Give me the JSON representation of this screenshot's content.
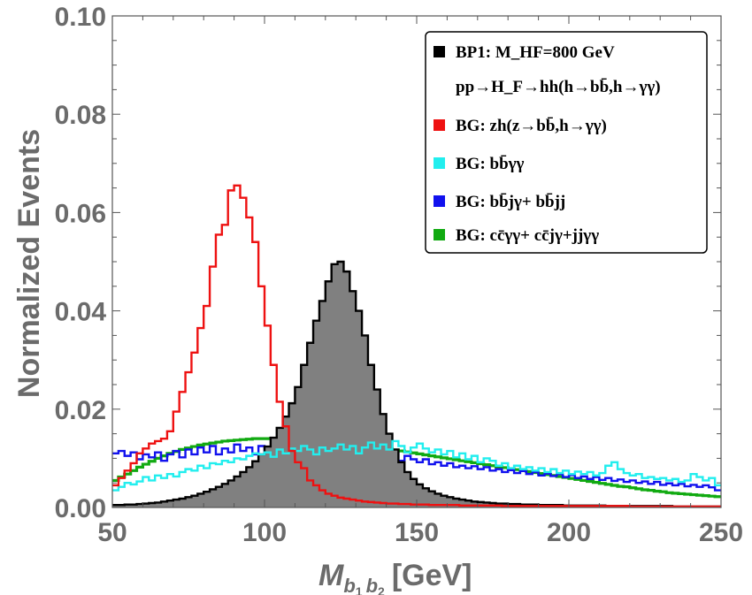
{
  "chart_data": {
    "type": "histogram",
    "xlabel": "M",
    "xlabel_sub1": "b",
    "xlabel_sub1_idx": "1",
    "xlabel_sub2": "b",
    "xlabel_sub2_idx": "2",
    "xlabel_unit": "[GeV]",
    "ylabel": "Normalized Events",
    "xlim": [
      50,
      250
    ],
    "ylim": [
      0,
      0.1
    ],
    "x_ticks": [
      50,
      100,
      150,
      200,
      250
    ],
    "y_ticks": [
      0.0,
      0.02,
      0.04,
      0.06,
      0.08,
      0.1
    ],
    "y_tick_labels": [
      "0.00",
      "0.02",
      "0.04",
      "0.06",
      "0.08",
      "0.10"
    ],
    "x_tick_labels": [
      "50",
      "100",
      "150",
      "200",
      "250"
    ],
    "bin_width": 2,
    "legend_position": "top-right",
    "legend": [
      {
        "color": "#000000",
        "label": "BP1: M_HF=800 GeV"
      },
      {
        "color": "",
        "label": "pp→H_F→hh(h→bb̄,h→γγ)"
      },
      {
        "color": "#ee1111",
        "label": "BG: zh(z→bb̄,h→γγ)"
      },
      {
        "color": "#22eeee",
        "label": "BG: bb̄γγ"
      },
      {
        "color": "#1111ee",
        "label": "BG: bb̄jγ+ bb̄jj"
      },
      {
        "color": "#11aa11",
        "label": "BG:  cc̄γγ+ cc̄jγ+jjγγ"
      }
    ],
    "series": [
      {
        "name": "BP1",
        "color": "#000000",
        "fill": "#808080",
        "x": [
          50,
          52,
          54,
          56,
          58,
          60,
          62,
          64,
          66,
          68,
          70,
          72,
          74,
          76,
          78,
          80,
          82,
          84,
          86,
          88,
          90,
          92,
          94,
          96,
          98,
          100,
          102,
          104,
          106,
          108,
          110,
          112,
          114,
          116,
          118,
          120,
          122,
          124,
          126,
          128,
          130,
          132,
          134,
          136,
          138,
          140,
          142,
          144,
          146,
          148,
          150,
          152,
          154,
          156,
          158,
          160,
          162,
          164,
          166,
          168,
          170,
          172,
          174,
          176,
          178,
          180,
          182,
          184,
          186,
          188,
          190,
          192,
          194,
          196,
          198,
          200,
          202,
          204,
          206,
          208,
          210,
          212,
          214,
          216,
          218,
          220,
          222,
          224,
          226,
          228,
          230,
          232,
          234,
          236,
          238,
          240,
          242,
          244,
          246,
          248
        ],
        "values": [
          0.0005,
          0.0005,
          0.0006,
          0.0006,
          0.0007,
          0.0008,
          0.0009,
          0.001,
          0.0012,
          0.0014,
          0.0016,
          0.0018,
          0.0021,
          0.0024,
          0.0028,
          0.0032,
          0.0037,
          0.0042,
          0.0048,
          0.0055,
          0.0063,
          0.0072,
          0.0082,
          0.0094,
          0.0108,
          0.0124,
          0.0142,
          0.0162,
          0.0185,
          0.0212,
          0.0245,
          0.029,
          0.0335,
          0.038,
          0.042,
          0.046,
          0.0495,
          0.05,
          0.048,
          0.044,
          0.04,
          0.035,
          0.029,
          0.024,
          0.019,
          0.015,
          0.0118,
          0.0092,
          0.0072,
          0.0058,
          0.0047,
          0.0039,
          0.0033,
          0.0028,
          0.0024,
          0.0021,
          0.0018,
          0.0016,
          0.0014,
          0.0012,
          0.0011,
          0.001,
          0.0009,
          0.0008,
          0.0008,
          0.0007,
          0.0007,
          0.0006,
          0.0006,
          0.0006,
          0.0005,
          0.0005,
          0.0005,
          0.0005,
          0.0004,
          0.0004,
          0.0004,
          0.0004,
          0.0004,
          0.0004,
          0.0004,
          0.0003,
          0.0003,
          0.0003,
          0.0003,
          0.0003,
          0.0003,
          0.0003,
          0.0003,
          0.0003,
          0.0003,
          0.0003,
          0.0002,
          0.0002,
          0.0002,
          0.0002,
          0.0002,
          0.0002,
          0.0002,
          0.0002
        ]
      },
      {
        "name": "BG: zh",
        "color": "#ee1111",
        "x": [
          50,
          52,
          54,
          56,
          58,
          60,
          62,
          64,
          66,
          68,
          70,
          72,
          74,
          76,
          78,
          80,
          82,
          84,
          86,
          88,
          90,
          92,
          94,
          96,
          98,
          100,
          102,
          104,
          106,
          108,
          110,
          112,
          114,
          116,
          118,
          120,
          122,
          124,
          126,
          128,
          130,
          132,
          134,
          136,
          138,
          140,
          142,
          144,
          146,
          148,
          150,
          152,
          154,
          156,
          158,
          160,
          162,
          164,
          166,
          168,
          170,
          172,
          174,
          176,
          178,
          180,
          182,
          184,
          186,
          188,
          190,
          192,
          194,
          196,
          198,
          200,
          202,
          204,
          206,
          208,
          210,
          212,
          214,
          216,
          218,
          220,
          222,
          224,
          226,
          228,
          230,
          232,
          234,
          236,
          238,
          240,
          242,
          244,
          246,
          248
        ],
        "values": [
          0.0045,
          0.006,
          0.0075,
          0.009,
          0.011,
          0.012,
          0.013,
          0.0135,
          0.014,
          0.0155,
          0.0195,
          0.0235,
          0.0275,
          0.0315,
          0.0365,
          0.041,
          0.049,
          0.0555,
          0.0575,
          0.0645,
          0.0655,
          0.063,
          0.059,
          0.054,
          0.045,
          0.037,
          0.029,
          0.0215,
          0.0165,
          0.0115,
          0.0092,
          0.008,
          0.0055,
          0.0045,
          0.0035,
          0.0028,
          0.0024,
          0.002,
          0.0018,
          0.0016,
          0.0014,
          0.0012,
          0.0011,
          0.001,
          0.0009,
          0.0008,
          0.0008,
          0.0007,
          0.0007,
          0.0006,
          0.0006,
          0.0006,
          0.0005,
          0.0005,
          0.0005,
          0.0005,
          0.0005,
          0.0004,
          0.0004,
          0.0004,
          0.0004,
          0.0004,
          0.0004,
          0.0004,
          0.0003,
          0.0003,
          0.0003,
          0.0003,
          0.0003,
          0.0003,
          0.0003,
          0.0003,
          0.0003,
          0.0003,
          0.0003,
          0.0003,
          0.0003,
          0.0003,
          0.0003,
          0.0003,
          0.0003,
          0.0003,
          0.0003,
          0.0003,
          0.0003,
          0.0002,
          0.0002,
          0.0002,
          0.0002,
          0.0002,
          0.0002,
          0.0002,
          0.0002,
          0.0002,
          0.0002,
          0.0002,
          0.0002,
          0.0002,
          0.0002,
          0.0002
        ]
      },
      {
        "name": "BG: bbγγ",
        "color": "#22eeee",
        "x": [
          50,
          52,
          54,
          56,
          58,
          60,
          62,
          64,
          66,
          68,
          70,
          72,
          74,
          76,
          78,
          80,
          82,
          84,
          86,
          88,
          90,
          92,
          94,
          96,
          98,
          100,
          102,
          104,
          106,
          108,
          110,
          112,
          114,
          116,
          118,
          120,
          122,
          124,
          126,
          128,
          130,
          132,
          134,
          136,
          138,
          140,
          142,
          144,
          146,
          148,
          150,
          152,
          154,
          156,
          158,
          160,
          162,
          164,
          166,
          168,
          170,
          172,
          174,
          176,
          178,
          180,
          182,
          184,
          186,
          188,
          190,
          192,
          194,
          196,
          198,
          200,
          202,
          204,
          206,
          208,
          210,
          212,
          214,
          216,
          218,
          220,
          222,
          224,
          226,
          228,
          230,
          232,
          234,
          236,
          238,
          240,
          242,
          244,
          246,
          248
        ],
        "values": [
          0.0035,
          0.0042,
          0.005,
          0.0047,
          0.0053,
          0.0062,
          0.0055,
          0.0065,
          0.006,
          0.0068,
          0.0063,
          0.0072,
          0.0078,
          0.0075,
          0.0085,
          0.008,
          0.009,
          0.0088,
          0.0095,
          0.0092,
          0.01,
          0.0098,
          0.0105,
          0.011,
          0.0108,
          0.0112,
          0.0103,
          0.0118,
          0.011,
          0.012,
          0.0115,
          0.0125,
          0.0118,
          0.0108,
          0.0122,
          0.0115,
          0.012,
          0.0128,
          0.0118,
          0.0125,
          0.011,
          0.0122,
          0.0132,
          0.012,
          0.0128,
          0.0118,
          0.0135,
          0.0125,
          0.0112,
          0.0122,
          0.013,
          0.012,
          0.0112,
          0.0118,
          0.0108,
          0.0115,
          0.0102,
          0.011,
          0.0098,
          0.0105,
          0.0092,
          0.01,
          0.0095,
          0.0085,
          0.009,
          0.008,
          0.0085,
          0.0078,
          0.0082,
          0.0075,
          0.008,
          0.0072,
          0.0078,
          0.007,
          0.0075,
          0.0068,
          0.0073,
          0.0068,
          0.0072,
          0.0065,
          0.007,
          0.0085,
          0.0092,
          0.0078,
          0.007,
          0.0065,
          0.0068,
          0.006,
          0.0062,
          0.0058,
          0.006,
          0.0055,
          0.0058,
          0.0052,
          0.0055,
          0.0068,
          0.0062,
          0.0055,
          0.006,
          0.0045
        ]
      },
      {
        "name": "BG: bbjγ + bbjj",
        "color": "#1111ee",
        "x": [
          50,
          52,
          54,
          56,
          58,
          60,
          62,
          64,
          66,
          68,
          70,
          72,
          74,
          76,
          78,
          80,
          82,
          84,
          86,
          88,
          90,
          92,
          94,
          96,
          98,
          100,
          102,
          104,
          106,
          108,
          110,
          112,
          114,
          116,
          118,
          120,
          122,
          124,
          126,
          128,
          130,
          132,
          134,
          136,
          138,
          140,
          142,
          144,
          146,
          148,
          150,
          152,
          154,
          156,
          158,
          160,
          162,
          164,
          166,
          168,
          170,
          172,
          174,
          176,
          178,
          180,
          182,
          184,
          186,
          188,
          190,
          192,
          194,
          196,
          198,
          200,
          202,
          204,
          206,
          208,
          210,
          212,
          214,
          216,
          218,
          220,
          222,
          224,
          226,
          228,
          230,
          232,
          234,
          236,
          238,
          240,
          242,
          244,
          246,
          248
        ],
        "values": [
          0.011,
          0.0115,
          0.0105,
          0.0112,
          0.0098,
          0.0108,
          0.0102,
          0.0112,
          0.0095,
          0.0108,
          0.0115,
          0.0102,
          0.0118,
          0.0108,
          0.0122,
          0.0112,
          0.0125,
          0.0108,
          0.012,
          0.0112,
          0.0128,
          0.0115,
          0.0122,
          0.0108,
          0.0125,
          0.0115,
          0.0108,
          0.012,
          0.0112,
          0.0128,
          0.0118,
          0.0108,
          0.0125,
          0.0115,
          0.012,
          0.0108,
          0.0118,
          0.011,
          0.0122,
          0.0108,
          0.0115,
          0.0102,
          0.0112,
          0.0098,
          0.0108,
          0.0102,
          0.0112,
          0.0095,
          0.0105,
          0.0098,
          0.0092,
          0.0098,
          0.0088,
          0.0092,
          0.0085,
          0.009,
          0.0082,
          0.0085,
          0.008,
          0.0084,
          0.0078,
          0.0082,
          0.0075,
          0.0078,
          0.0072,
          0.0076,
          0.007,
          0.0074,
          0.0068,
          0.0072,
          0.0065,
          0.0069,
          0.0064,
          0.0068,
          0.0062,
          0.0066,
          0.006,
          0.0063,
          0.0058,
          0.0062,
          0.0056,
          0.006,
          0.0054,
          0.0057,
          0.0052,
          0.0055,
          0.005,
          0.0053,
          0.0048,
          0.0052,
          0.0046,
          0.0049,
          0.0045,
          0.0048,
          0.0043,
          0.0046,
          0.0042,
          0.0045,
          0.0041,
          0.0035
        ]
      },
      {
        "name": "BG: ccγγ + ccjγ + jjγγ",
        "color": "#11aa11",
        "x": [
          50,
          52,
          54,
          56,
          58,
          60,
          62,
          64,
          66,
          68,
          70,
          72,
          74,
          76,
          78,
          80,
          82,
          84,
          86,
          88,
          90,
          92,
          94,
          96,
          98,
          100,
          102,
          104,
          106,
          108,
          110,
          112,
          114,
          116,
          118,
          120,
          122,
          124,
          126,
          128,
          130,
          132,
          134,
          136,
          138,
          140,
          142,
          144,
          146,
          148,
          150,
          152,
          154,
          156,
          158,
          160,
          162,
          164,
          166,
          168,
          170,
          172,
          174,
          176,
          178,
          180,
          182,
          184,
          186,
          188,
          190,
          192,
          194,
          196,
          198,
          200,
          202,
          204,
          206,
          208,
          210,
          212,
          214,
          216,
          218,
          220,
          222,
          224,
          226,
          228,
          230,
          232,
          234,
          236,
          238,
          240,
          242,
          244,
          246,
          248
        ],
        "values": [
          0.0055,
          0.0062,
          0.0068,
          0.0075,
          0.0082,
          0.0088,
          0.0094,
          0.01,
          0.0105,
          0.011,
          0.0114,
          0.0118,
          0.0121,
          0.0124,
          0.0127,
          0.0129,
          0.0131,
          0.0133,
          0.0135,
          0.0136,
          0.0137,
          0.0138,
          0.0139,
          0.014,
          0.014,
          0.014,
          0.0141,
          0.0141,
          0.0141,
          0.014,
          0.014,
          0.014,
          0.0139,
          0.0138,
          0.0137,
          0.0136,
          0.0135,
          0.0134,
          0.0132,
          0.013,
          0.0129,
          0.0127,
          0.0125,
          0.0123,
          0.0121,
          0.0119,
          0.0117,
          0.0115,
          0.0113,
          0.0111,
          0.0109,
          0.0107,
          0.0105,
          0.0103,
          0.0101,
          0.0099,
          0.0097,
          0.0095,
          0.0093,
          0.0091,
          0.0089,
          0.0087,
          0.0085,
          0.0083,
          0.0081,
          0.0079,
          0.0077,
          0.0075,
          0.0073,
          0.0071,
          0.0069,
          0.0067,
          0.0065,
          0.0063,
          0.0061,
          0.0059,
          0.0057,
          0.0055,
          0.0053,
          0.0051,
          0.0049,
          0.0047,
          0.0045,
          0.0043,
          0.0042,
          0.004,
          0.0038,
          0.0036,
          0.0035,
          0.0033,
          0.0032,
          0.003,
          0.0029,
          0.0028,
          0.0027,
          0.0026,
          0.0025,
          0.0024,
          0.0023,
          0.0022
        ]
      }
    ]
  }
}
